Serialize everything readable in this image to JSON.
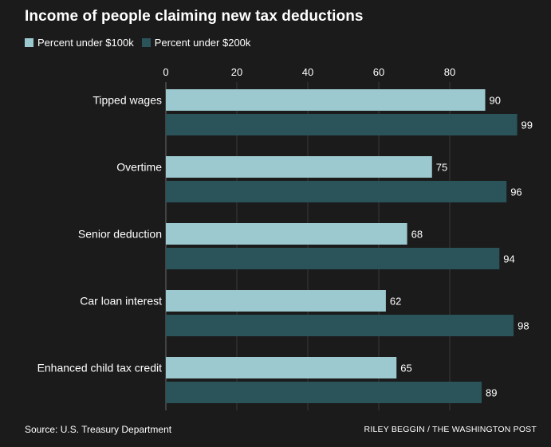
{
  "colors": {
    "background": "#1b1b1b",
    "series1": "#9cc9cf",
    "series2": "#2a545a",
    "text": "#ffffff",
    "gridline": "#3a3a3a"
  },
  "footer": {
    "source": "Source: U.S. Treasury Department",
    "credit": "RILEY BEGGIN / THE WASHINGTON POST"
  },
  "chart_data": {
    "type": "bar",
    "orientation": "horizontal",
    "title": "Income of people claiming new tax deductions",
    "categories": [
      "Tipped wages",
      "Overtime",
      "Senior deduction",
      "Car loan interest",
      "Enhanced child tax credit"
    ],
    "series": [
      {
        "name": "Percent under $100k",
        "values": [
          90,
          75,
          68,
          62,
          65
        ],
        "color": "#9cc9cf"
      },
      {
        "name": "Percent under $200k",
        "values": [
          99,
          96,
          94,
          98,
          89
        ],
        "color": "#2a545a"
      }
    ],
    "x_ticks": [
      0,
      20,
      40,
      60,
      80
    ],
    "xlim": [
      0,
      100
    ],
    "legend_position": "top-left",
    "grid": true
  }
}
